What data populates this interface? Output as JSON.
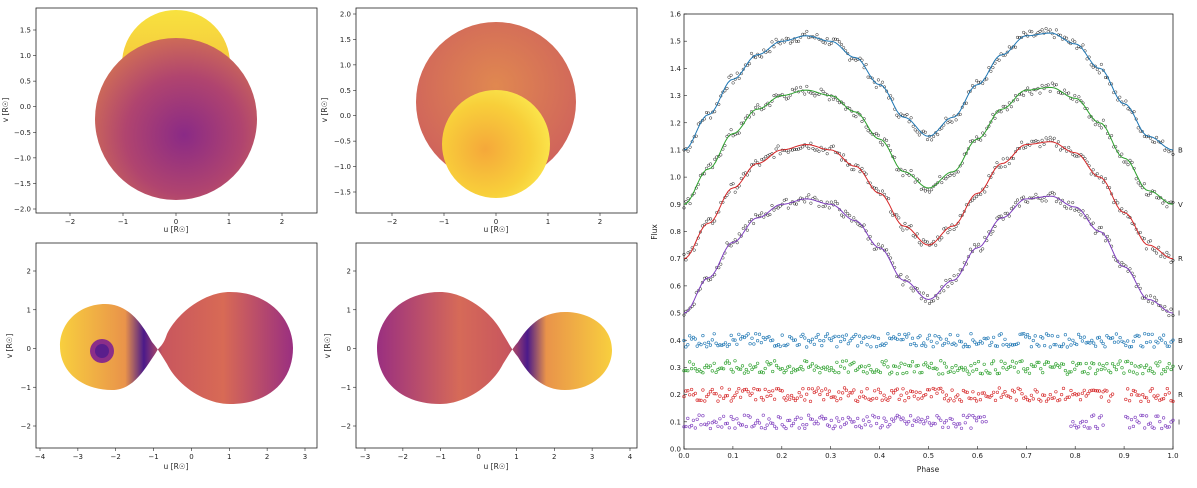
{
  "panels": [
    {
      "xlabel": "u [R☉]",
      "ylabel": "v [R☉]",
      "xticks": [
        "−2",
        "−1",
        "0",
        "1",
        "2"
      ],
      "yticks": [
        "1.5",
        "1.0",
        "0.5",
        "0.0",
        "−0.5",
        "−1.0",
        "−1.5",
        "−2.0"
      ]
    },
    {
      "xlabel": "u [R☉]",
      "ylabel": "v [R☉]",
      "xticks": [
        "−2",
        "−1",
        "0",
        "1",
        "2"
      ],
      "yticks": [
        "2.0",
        "1.5",
        "1.0",
        "0.5",
        "0.0",
        "−0.5",
        "−1.0",
        "−1.5"
      ]
    },
    {
      "xlabel": "u [R☉]",
      "ylabel": "v [R☉]",
      "xticks": [
        "−4",
        "−3",
        "−2",
        "−1",
        "0",
        "1",
        "2",
        "3"
      ],
      "yticks": [
        "2",
        "1",
        "0",
        "−1",
        "−2"
      ]
    },
    {
      "xlabel": "u [R☉]",
      "ylabel": "v [R☉]",
      "xticks": [
        "−3",
        "−2",
        "−1",
        "0",
        "1",
        "2",
        "3",
        "4"
      ],
      "yticks": [
        "2",
        "1",
        "0",
        "−1",
        "−2"
      ]
    }
  ],
  "chart_data": {
    "type": "scatter",
    "xlabel": "Phase",
    "ylabel": "Flux",
    "xlim": [
      0.0,
      1.0
    ],
    "ylim": [
      0.0,
      1.6
    ],
    "xticks": [
      "0.0",
      "0.1",
      "0.2",
      "0.3",
      "0.4",
      "0.5",
      "0.6",
      "0.7",
      "0.8",
      "0.9",
      "1.0"
    ],
    "yticks": [
      "1.6",
      "1.5",
      "1.4",
      "1.3",
      "1.2",
      "1.1",
      "1.0",
      "0.9",
      "0.8",
      "0.7",
      "0.6",
      "0.5",
      "0.4",
      "0.3",
      "0.2",
      "0.1",
      "0.0"
    ],
    "phase": [
      0.0,
      0.05,
      0.1,
      0.15,
      0.2,
      0.25,
      0.3,
      0.35,
      0.4,
      0.45,
      0.5,
      0.55,
      0.6,
      0.65,
      0.7,
      0.75,
      0.8,
      0.85,
      0.9,
      0.95,
      1.0
    ],
    "series": [
      {
        "name": "B",
        "color": "#1f77b4",
        "values": [
          1.1,
          1.23,
          1.36,
          1.45,
          1.5,
          1.52,
          1.5,
          1.44,
          1.34,
          1.22,
          1.15,
          1.22,
          1.34,
          1.45,
          1.52,
          1.53,
          1.49,
          1.4,
          1.27,
          1.15,
          1.1
        ]
      },
      {
        "name": "V",
        "color": "#2ca02c",
        "values": [
          0.9,
          1.03,
          1.16,
          1.25,
          1.3,
          1.32,
          1.3,
          1.24,
          1.14,
          1.02,
          0.96,
          1.02,
          1.14,
          1.25,
          1.32,
          1.33,
          1.29,
          1.2,
          1.07,
          0.95,
          0.9
        ]
      },
      {
        "name": "R",
        "color": "#d62728",
        "values": [
          0.7,
          0.83,
          0.96,
          1.05,
          1.1,
          1.12,
          1.1,
          1.04,
          0.94,
          0.82,
          0.75,
          0.82,
          0.94,
          1.05,
          1.12,
          1.13,
          1.09,
          1.0,
          0.87,
          0.75,
          0.7
        ]
      },
      {
        "name": "I",
        "color": "#7f3fbf",
        "values": [
          0.5,
          0.63,
          0.76,
          0.85,
          0.9,
          0.92,
          0.9,
          0.84,
          0.74,
          0.62,
          0.55,
          0.62,
          0.74,
          0.85,
          0.92,
          0.93,
          0.89,
          0.8,
          0.67,
          0.55,
          0.5
        ]
      }
    ],
    "residuals": [
      {
        "name": "B",
        "color": "#1f77b4",
        "level": 0.4
      },
      {
        "name": "V",
        "color": "#2ca02c",
        "level": 0.3
      },
      {
        "name": "R",
        "color": "#d62728",
        "level": 0.2
      },
      {
        "name": "I",
        "color": "#7f3fbf",
        "level": 0.1
      }
    ]
  }
}
